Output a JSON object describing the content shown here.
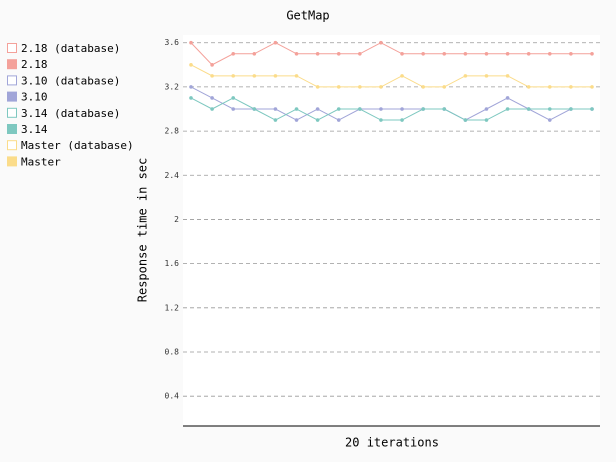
{
  "chart_data": {
    "type": "line",
    "title": "GetMap",
    "x_label": "20 iterations",
    "y_label": "Response time in sec",
    "ylim": [
      0.13,
      3.67
    ],
    "yticks": [
      0.4,
      0.8,
      1.2,
      1.6,
      2,
      2.4,
      2.8,
      3.2,
      3.6
    ],
    "grid": true,
    "legend": "left",
    "series": [
      {
        "name": "2.18 (database)",
        "color": "#f4a19a",
        "values": [
          null,
          null,
          null,
          null,
          null,
          null,
          null,
          null,
          null,
          null,
          null,
          null,
          null,
          null,
          null,
          null,
          null,
          null,
          null,
          null
        ]
      },
      {
        "name": "2.18",
        "color": "#f4a19a",
        "values": [
          3.6,
          3.4,
          3.5,
          3.5,
          3.6,
          3.5,
          3.5,
          3.5,
          3.5,
          3.6,
          3.5,
          3.5,
          3.5,
          3.5,
          3.5,
          3.5,
          3.5,
          3.5,
          3.5,
          3.5
        ]
      },
      {
        "name": "3.10 (database)",
        "color": "#a1a5d8",
        "values": [
          null,
          null,
          null,
          null,
          null,
          null,
          null,
          null,
          null,
          null,
          null,
          null,
          null,
          null,
          null,
          null,
          null,
          null,
          null,
          null
        ]
      },
      {
        "name": "3.10",
        "color": "#a1a5d8",
        "values": [
          3.2,
          3.1,
          3.0,
          3.0,
          3.0,
          2.9,
          3.0,
          2.9,
          3.0,
          3.0,
          3.0,
          3.0,
          3.0,
          2.9,
          3.0,
          3.1,
          3.0,
          2.9,
          3.0,
          3.0
        ]
      },
      {
        "name": "3.14 (database)",
        "color": "#7ec8c0",
        "values": [
          null,
          null,
          null,
          null,
          null,
          null,
          null,
          null,
          null,
          null,
          null,
          null,
          null,
          null,
          null,
          null,
          null,
          null,
          null,
          null
        ]
      },
      {
        "name": "3.14",
        "color": "#7ec8c0",
        "values": [
          3.1,
          3.0,
          3.1,
          3.0,
          2.9,
          3.0,
          2.9,
          3.0,
          3.0,
          2.9,
          2.9,
          3.0,
          3.0,
          2.9,
          2.9,
          3.0,
          3.0,
          3.0,
          3.0,
          3.0
        ]
      },
      {
        "name": "Master (database)",
        "color": "#fbdc8a",
        "values": [
          null,
          null,
          null,
          null,
          null,
          null,
          null,
          null,
          null,
          null,
          null,
          null,
          null,
          null,
          null,
          null,
          null,
          null,
          null,
          null
        ]
      },
      {
        "name": "Master",
        "color": "#fbdc8a",
        "values": [
          3.4,
          3.3,
          3.3,
          3.3,
          3.3,
          3.3,
          3.2,
          3.2,
          3.2,
          3.2,
          3.3,
          3.2,
          3.2,
          3.3,
          3.3,
          3.3,
          3.2,
          3.2,
          3.2,
          3.2
        ]
      }
    ]
  }
}
